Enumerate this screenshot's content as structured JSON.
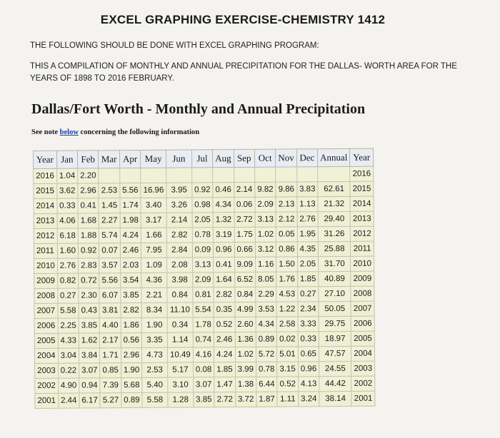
{
  "title": "EXCEL GRAPHING EXERCISE-CHEMISTRY 1412",
  "instruction": "THE FOLLOWING SHOULD BE DONE WITH EXCEL GRAPHING PROGRAM:",
  "description": "THIS A COMPILATION OF MONTHLY AND ANNUAL PRECIPITATION FOR THE DALLAS- WORTH AREA FOR THE YEARS OF 1898 TO 2016 FEBRUARY.",
  "heading": "Dallas/Fort Worth - Monthly and Annual Precipitation",
  "note": {
    "before": "See note ",
    "link": "below",
    "after": " concerning the following information"
  },
  "table": {
    "columns": [
      "Year",
      "Jan",
      "Feb",
      "Mar",
      "Apr",
      "May",
      "Jun",
      "Jul",
      "Aug",
      "Sep",
      "Oct",
      "Nov",
      "Dec",
      "Annual",
      "Year"
    ],
    "rows": [
      [
        "2016",
        "1.04",
        "2.20",
        "",
        "",
        "",
        "",
        "",
        "",
        "",
        "",
        "",
        "",
        "",
        "2016"
      ],
      [
        "2015",
        "3.62",
        "2.96",
        "2.53",
        "5.56",
        "16.96",
        "3.95",
        "0.92",
        "0.46",
        "2.14",
        "9.82",
        "9.86",
        "3.83",
        "62.61",
        "2015"
      ],
      [
        "2014",
        "0.33",
        "0.41",
        "1.45",
        "1.74",
        "3.40",
        "3.26",
        "0.98",
        "4.34",
        "0.06",
        "2.09",
        "2.13",
        "1.13",
        "21.32",
        "2014"
      ],
      [
        "2013",
        "4.06",
        "1.68",
        "2.27",
        "1.98",
        "3.17",
        "2.14",
        "2.05",
        "1.32",
        "2.72",
        "3.13",
        "2.12",
        "2.76",
        "29.40",
        "2013"
      ],
      [
        "2012",
        "6.18",
        "1.88",
        "5.74",
        "4.24",
        "1.66",
        "2.82",
        "0.78",
        "3.19",
        "1.75",
        "1.02",
        "0.05",
        "1.95",
        "31.26",
        "2012"
      ],
      [
        "2011",
        "1.60",
        "0.92",
        "0.07",
        "2.46",
        "7.95",
        "2.84",
        "0.09",
        "0.96",
        "0.66",
        "3.12",
        "0.86",
        "4.35",
        "25.88",
        "2011"
      ],
      [
        "2010",
        "2.76",
        "2.83",
        "3.57",
        "2.03",
        "1.09",
        "2.08",
        "3.13",
        "0.41",
        "9.09",
        "1.16",
        "1.50",
        "2.05",
        "31.70",
        "2010"
      ],
      [
        "2009",
        "0.82",
        "0.72",
        "5.56",
        "3.54",
        "4.36",
        "3.98",
        "2.09",
        "1.64",
        "6.52",
        "8.05",
        "1.76",
        "1.85",
        "40.89",
        "2009"
      ],
      [
        "2008",
        "0.27",
        "2.30",
        "6.07",
        "3.85",
        "2.21",
        "0.84",
        "0.81",
        "2.82",
        "0.84",
        "2.29",
        "4.53",
        "0.27",
        "27.10",
        "2008"
      ],
      [
        "2007",
        "5.58",
        "0.43",
        "3.81",
        "2.82",
        "8.34",
        "11.10",
        "5.54",
        "0.35",
        "4.99",
        "3.53",
        "1.22",
        "2.34",
        "50.05",
        "2007"
      ],
      [
        "2006",
        "2.25",
        "3.85",
        "4.40",
        "1.86",
        "1.90",
        "0.34",
        "1.78",
        "0.52",
        "2.60",
        "4.34",
        "2.58",
        "3.33",
        "29.75",
        "2006"
      ],
      [
        "2005",
        "4.33",
        "1.62",
        "2.17",
        "0.56",
        "3.35",
        "1.14",
        "0.74",
        "2.46",
        "1.36",
        "0.89",
        "0.02",
        "0.33",
        "18.97",
        "2005"
      ],
      [
        "2004",
        "3.04",
        "3.84",
        "1.71",
        "2.96",
        "4.73",
        "10.49",
        "4.16",
        "4.24",
        "1.02",
        "5.72",
        "5.01",
        "0.65",
        "47.57",
        "2004"
      ],
      [
        "2003",
        "0.22",
        "3.07",
        "0.85",
        "1.90",
        "2.53",
        "5.17",
        "0.08",
        "1.85",
        "3.99",
        "0.78",
        "3.15",
        "0.96",
        "24.55",
        "2003"
      ],
      [
        "2002",
        "4.90",
        "0.94",
        "7.39",
        "5.68",
        "5.40",
        "3.10",
        "3.07",
        "1.47",
        "1.38",
        "6.44",
        "0.52",
        "4.13",
        "44.42",
        "2002"
      ],
      [
        "2001",
        "2.44",
        "6.17",
        "5.27",
        "0.89",
        "5.58",
        "1.28",
        "3.85",
        "2.72",
        "3.72",
        "1.87",
        "1.11",
        "3.24",
        "38.14",
        "2001"
      ]
    ]
  }
}
